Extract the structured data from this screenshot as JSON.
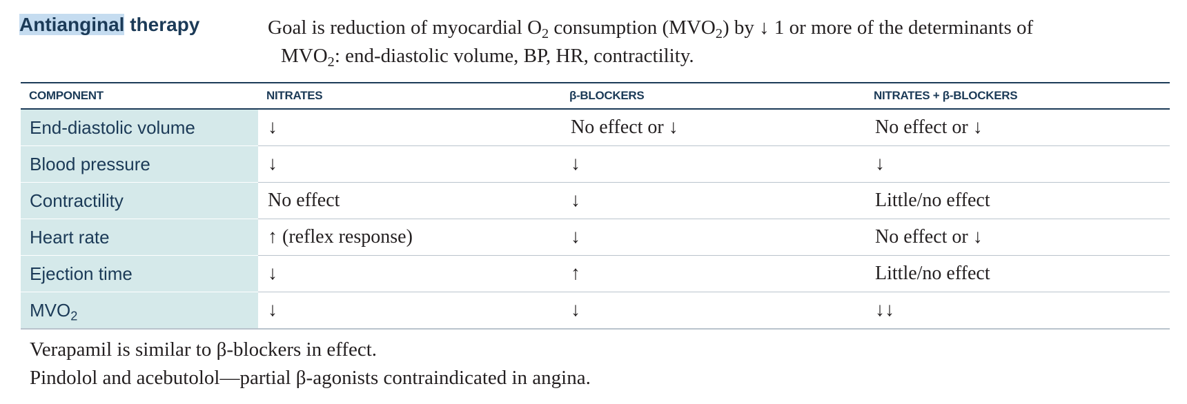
{
  "title": [
    "Antianginal",
    "therapy"
  ],
  "intro": [
    [
      "Goal is reduction of myocardial O",
      "2",
      " consumption (MVO",
      "2",
      ") by ↓ 1 or more of the determinants of"
    ],
    [
      "MVO",
      "2",
      ": end-diastolic volume, BP, HR, contractility."
    ]
  ],
  "table": {
    "header": [
      "COMPONENT",
      "NITRATES",
      "β-BLOCKERS",
      "NITRATES + β-BLOCKERS"
    ],
    "rows": [
      [
        [
          "End-diastolic volume"
        ],
        "↓",
        "No effect or ↓",
        "No effect or ↓"
      ],
      [
        [
          "Blood pressure"
        ],
        "↓",
        "↓",
        "↓"
      ],
      [
        [
          "Contractility"
        ],
        "No effect",
        "↓",
        "Little/no effect"
      ],
      [
        [
          "Heart rate"
        ],
        "↑ (reflex response)",
        "↓",
        "No effect or ↓"
      ],
      [
        [
          "Ejection time"
        ],
        "↓",
        "↑",
        "Little/no effect"
      ],
      [
        [
          "MVO",
          "2"
        ],
        "↓",
        "↓",
        "↓↓"
      ]
    ]
  },
  "notes": [
    "Verapamil is similar to β-blockers in effect.",
    "Pindolol and acebutolol—partial β-agonists contraindicated in angina."
  ]
}
